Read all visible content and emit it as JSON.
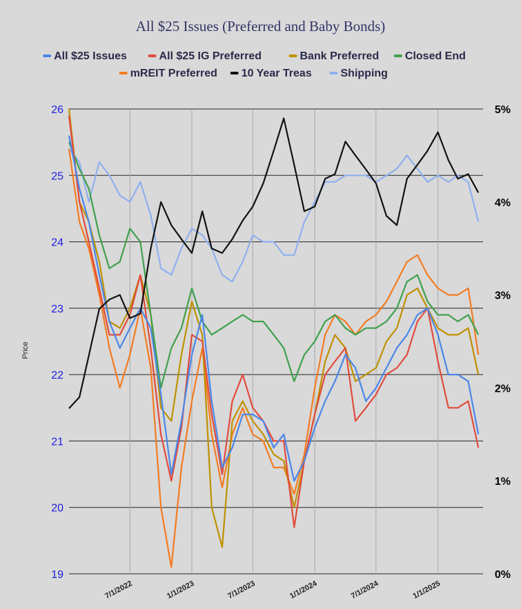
{
  "chart_data": {
    "type": "line",
    "title": "All $25 Issues (Preferred and Baby Bonds)",
    "ylabel": "Price",
    "ylim": [
      19,
      26
    ],
    "y_ticks": [
      "19",
      "20",
      "21",
      "22",
      "23",
      "24",
      "25",
      "26"
    ],
    "y2lim": [
      0,
      5
    ],
    "y2_ticks": [
      "0%",
      "1%",
      "2%",
      "3%",
      "4%",
      "5%"
    ],
    "xlim": [
      "2022-01-01",
      "2025-05-15"
    ],
    "x_ticks": [
      {
        "date": "2022-07-01",
        "label": "7/1/2022"
      },
      {
        "date": "2023-01-01",
        "label": "1/1/2023"
      },
      {
        "date": "2023-07-01",
        "label": "7/1/2023"
      },
      {
        "date": "2024-01-01",
        "label": "1/1/2024"
      },
      {
        "date": "2024-07-01",
        "label": "7/1/2024"
      },
      {
        "date": "2025-01-01",
        "label": "1/1/2025"
      }
    ],
    "legend_position": "top",
    "grid": true,
    "series": [
      {
        "name": "All $25 Issues",
        "color": "#4a86e8",
        "axis": "left",
        "x": [
          "2022-01-01",
          "2022-02-01",
          "2022-03-01",
          "2022-04-01",
          "2022-05-01",
          "2022-06-01",
          "2022-07-01",
          "2022-08-01",
          "2022-09-01",
          "2022-10-01",
          "2022-11-01",
          "2022-12-01",
          "2023-01-01",
          "2023-02-01",
          "2023-03-01",
          "2023-04-01",
          "2023-05-01",
          "2023-06-01",
          "2023-07-01",
          "2023-08-01",
          "2023-09-01",
          "2023-10-01",
          "2023-11-01",
          "2023-12-01",
          "2024-01-01",
          "2024-02-01",
          "2024-03-01",
          "2024-04-01",
          "2024-05-01",
          "2024-06-01",
          "2024-07-01",
          "2024-08-01",
          "2024-09-01",
          "2024-10-01",
          "2024-11-01",
          "2024-12-01",
          "2025-01-01",
          "2025-02-01",
          "2025-03-01",
          "2025-04-01",
          "2025-05-01"
        ],
        "values": [
          25.6,
          24.8,
          24.3,
          23.5,
          22.8,
          22.4,
          22.7,
          23.0,
          22.7,
          21.7,
          20.5,
          21.3,
          22.3,
          22.9,
          21.6,
          20.6,
          20.9,
          21.4,
          21.4,
          21.3,
          20.9,
          21.1,
          20.4,
          20.7,
          21.2,
          21.6,
          21.9,
          22.3,
          22.1,
          21.6,
          21.8,
          22.1,
          22.4,
          22.6,
          22.9,
          23.0,
          22.6,
          22.0,
          22.0,
          21.9,
          21.1
        ]
      },
      {
        "name": "All $25 IG Preferred",
        "color": "#e04b3c",
        "axis": "left",
        "x": [
          "2022-01-01",
          "2022-02-01",
          "2022-03-01",
          "2022-04-01",
          "2022-05-01",
          "2022-06-01",
          "2022-07-01",
          "2022-08-01",
          "2022-09-01",
          "2022-10-01",
          "2022-11-01",
          "2022-12-01",
          "2023-01-01",
          "2023-02-01",
          "2023-03-01",
          "2023-04-01",
          "2023-05-01",
          "2023-06-01",
          "2023-07-01",
          "2023-08-01",
          "2023-09-01",
          "2023-10-01",
          "2023-11-01",
          "2023-12-01",
          "2024-01-01",
          "2024-02-01",
          "2024-03-01",
          "2024-04-01",
          "2024-05-01",
          "2024-06-01",
          "2024-07-01",
          "2024-08-01",
          "2024-09-01",
          "2024-10-01",
          "2024-11-01",
          "2024-12-01",
          "2025-01-01",
          "2025-02-01",
          "2025-03-01",
          "2025-04-01",
          "2025-05-01"
        ],
        "values": [
          25.9,
          24.6,
          24.0,
          23.3,
          22.6,
          22.6,
          22.9,
          23.5,
          22.4,
          21.1,
          20.4,
          21.2,
          22.6,
          22.5,
          21.4,
          20.5,
          21.6,
          22.0,
          21.5,
          21.3,
          21.0,
          21.0,
          19.7,
          20.7,
          21.4,
          22.0,
          22.2,
          22.4,
          21.3,
          21.5,
          21.7,
          22.0,
          22.1,
          22.3,
          22.8,
          23.0,
          22.2,
          21.5,
          21.5,
          21.6,
          20.9
        ]
      },
      {
        "name": "Bank Preferred",
        "color": "#bf9000",
        "axis": "left",
        "x": [
          "2022-01-01",
          "2022-02-01",
          "2022-03-01",
          "2022-04-01",
          "2022-05-01",
          "2022-06-01",
          "2022-07-01",
          "2022-08-01",
          "2022-09-01",
          "2022-10-01",
          "2022-11-01",
          "2022-12-01",
          "2023-01-01",
          "2023-02-01",
          "2023-03-01",
          "2023-04-01",
          "2023-05-01",
          "2023-06-01",
          "2023-07-01",
          "2023-08-01",
          "2023-09-01",
          "2023-10-01",
          "2023-11-01",
          "2023-12-01",
          "2024-01-01",
          "2024-02-01",
          "2024-03-01",
          "2024-04-01",
          "2024-05-01",
          "2024-06-01",
          "2024-07-01",
          "2024-08-01",
          "2024-09-01",
          "2024-10-01",
          "2024-11-01",
          "2024-12-01",
          "2025-01-01",
          "2025-02-01",
          "2025-03-01",
          "2025-04-01",
          "2025-05-01"
        ],
        "values": [
          26.0,
          24.6,
          24.3,
          23.7,
          22.8,
          22.7,
          23.0,
          23.5,
          22.9,
          21.5,
          21.3,
          22.3,
          23.1,
          22.6,
          20.0,
          19.4,
          21.3,
          21.6,
          21.3,
          21.1,
          20.8,
          20.7,
          20.0,
          20.7,
          21.4,
          22.2,
          22.6,
          22.4,
          21.9,
          22.0,
          22.1,
          22.5,
          22.7,
          23.2,
          23.3,
          23.0,
          22.7,
          22.6,
          22.6,
          22.7,
          22.0
        ]
      },
      {
        "name": "Closed End",
        "color": "#3fa04c",
        "axis": "left",
        "x": [
          "2022-01-01",
          "2022-02-01",
          "2022-03-01",
          "2022-04-01",
          "2022-05-01",
          "2022-06-01",
          "2022-07-01",
          "2022-08-01",
          "2022-09-01",
          "2022-10-01",
          "2022-11-01",
          "2022-12-01",
          "2023-01-01",
          "2023-02-01",
          "2023-03-01",
          "2023-04-01",
          "2023-05-01",
          "2023-06-01",
          "2023-07-01",
          "2023-08-01",
          "2023-09-01",
          "2023-10-01",
          "2023-11-01",
          "2023-12-01",
          "2024-01-01",
          "2024-02-01",
          "2024-03-01",
          "2024-04-01",
          "2024-05-01",
          "2024-06-01",
          "2024-07-01",
          "2024-08-01",
          "2024-09-01",
          "2024-10-01",
          "2024-11-01",
          "2024-12-01",
          "2025-01-01",
          "2025-02-01",
          "2025-03-01",
          "2025-04-01",
          "2025-05-01"
        ],
        "values": [
          25.5,
          25.1,
          24.8,
          24.1,
          23.6,
          23.7,
          24.2,
          24.0,
          22.9,
          21.8,
          22.4,
          22.7,
          23.3,
          22.8,
          22.6,
          22.7,
          22.8,
          22.9,
          22.8,
          22.8,
          22.6,
          22.4,
          21.9,
          22.3,
          22.5,
          22.8,
          22.9,
          22.7,
          22.6,
          22.7,
          22.7,
          22.8,
          23.0,
          23.4,
          23.5,
          23.1,
          22.9,
          22.9,
          22.8,
          22.9,
          22.6
        ]
      },
      {
        "name": "mREIT Preferred",
        "color": "#f47b20",
        "axis": "left",
        "x": [
          "2022-01-01",
          "2022-02-01",
          "2022-03-01",
          "2022-04-01",
          "2022-05-01",
          "2022-06-01",
          "2022-07-01",
          "2022-08-01",
          "2022-09-01",
          "2022-10-01",
          "2022-11-01",
          "2022-12-01",
          "2023-01-01",
          "2023-02-01",
          "2023-03-01",
          "2023-04-01",
          "2023-05-01",
          "2023-06-01",
          "2023-07-01",
          "2023-08-01",
          "2023-09-01",
          "2023-10-01",
          "2023-11-01",
          "2023-12-01",
          "2024-01-01",
          "2024-02-01",
          "2024-03-01",
          "2024-04-01",
          "2024-05-01",
          "2024-06-01",
          "2024-07-01",
          "2024-08-01",
          "2024-09-01",
          "2024-10-01",
          "2024-11-01",
          "2024-12-01",
          "2025-01-01",
          "2025-02-01",
          "2025-03-01",
          "2025-04-01",
          "2025-05-01"
        ],
        "values": [
          25.4,
          24.3,
          23.9,
          23.2,
          22.4,
          21.8,
          22.3,
          23.0,
          22.1,
          20.0,
          19.1,
          20.6,
          21.6,
          22.4,
          21.1,
          20.3,
          21.1,
          21.5,
          21.1,
          21.0,
          20.6,
          20.6,
          20.2,
          20.8,
          21.8,
          22.6,
          22.9,
          22.8,
          22.6,
          22.8,
          22.9,
          23.1,
          23.4,
          23.7,
          23.8,
          23.5,
          23.3,
          23.2,
          23.2,
          23.3,
          22.3
        ]
      },
      {
        "name": "10 Year Treas",
        "color": "#111111",
        "axis": "right",
        "x": [
          "2022-01-01",
          "2022-02-01",
          "2022-03-01",
          "2022-04-01",
          "2022-05-01",
          "2022-06-01",
          "2022-07-01",
          "2022-08-01",
          "2022-09-01",
          "2022-10-01",
          "2022-11-01",
          "2022-12-01",
          "2023-01-01",
          "2023-02-01",
          "2023-03-01",
          "2023-04-01",
          "2023-05-01",
          "2023-06-01",
          "2023-07-01",
          "2023-08-01",
          "2023-09-01",
          "2023-10-01",
          "2023-11-01",
          "2023-12-01",
          "2024-01-01",
          "2024-02-01",
          "2024-03-01",
          "2024-04-01",
          "2024-05-01",
          "2024-06-01",
          "2024-07-01",
          "2024-08-01",
          "2024-09-01",
          "2024-10-01",
          "2024-11-01",
          "2024-12-01",
          "2025-01-01",
          "2025-02-01",
          "2025-03-01",
          "2025-04-01",
          "2025-05-01"
        ],
        "values": [
          1.78,
          1.9,
          2.35,
          2.85,
          2.95,
          3.0,
          2.75,
          2.8,
          3.5,
          4.0,
          3.75,
          3.6,
          3.45,
          3.9,
          3.5,
          3.45,
          3.6,
          3.8,
          3.95,
          4.2,
          4.55,
          4.9,
          4.4,
          3.9,
          3.95,
          4.25,
          4.3,
          4.65,
          4.5,
          4.35,
          4.2,
          3.85,
          3.75,
          4.25,
          4.4,
          4.55,
          4.75,
          4.45,
          4.25,
          4.3,
          4.1
        ]
      },
      {
        "name": "Shipping",
        "color": "#8fb0ee",
        "axis": "left",
        "x": [
          "2022-01-01",
          "2022-02-01",
          "2022-03-01",
          "2022-04-01",
          "2022-05-01",
          "2022-06-01",
          "2022-07-01",
          "2022-08-01",
          "2022-09-01",
          "2022-10-01",
          "2022-11-01",
          "2022-12-01",
          "2023-01-01",
          "2023-02-01",
          "2023-03-01",
          "2023-04-01",
          "2023-05-01",
          "2023-06-01",
          "2023-07-01",
          "2023-08-01",
          "2023-09-01",
          "2023-10-01",
          "2023-11-01",
          "2023-12-01",
          "2024-01-01",
          "2024-02-01",
          "2024-03-01",
          "2024-04-01",
          "2024-05-01",
          "2024-06-01",
          "2024-07-01",
          "2024-08-01",
          "2024-09-01",
          "2024-10-01",
          "2024-11-01",
          "2024-12-01",
          "2025-01-01",
          "2025-02-01",
          "2025-03-01",
          "2025-04-01",
          "2025-05-01"
        ],
        "values": [
          25.4,
          25.2,
          24.6,
          25.2,
          25.0,
          24.7,
          24.6,
          24.9,
          24.4,
          23.6,
          23.5,
          23.9,
          24.2,
          24.1,
          23.9,
          23.5,
          23.4,
          23.7,
          24.1,
          24.0,
          24.0,
          23.8,
          23.8,
          24.3,
          24.6,
          24.9,
          24.9,
          25.0,
          25.0,
          25.0,
          24.9,
          25.0,
          25.1,
          25.3,
          25.1,
          24.9,
          25.0,
          24.9,
          25.0,
          24.9,
          24.3
        ]
      }
    ]
  }
}
